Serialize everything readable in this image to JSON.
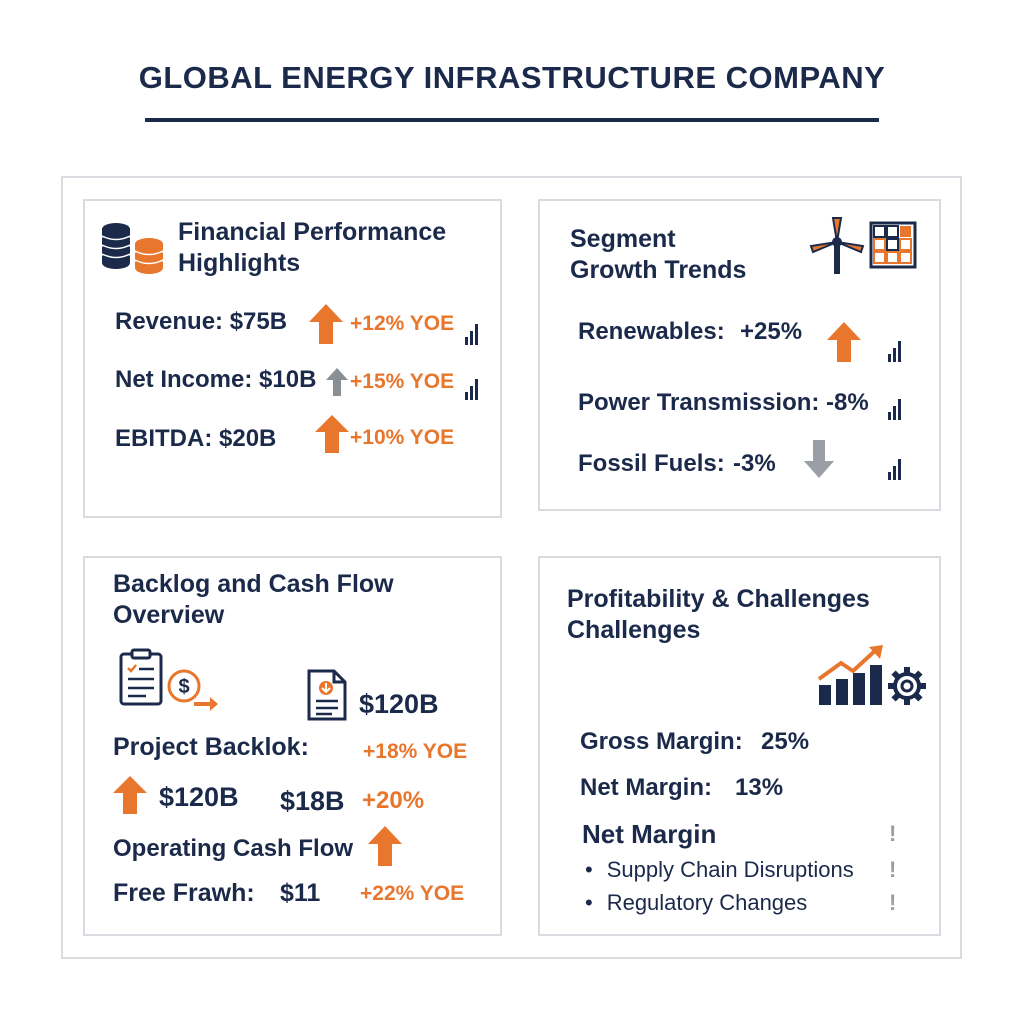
{
  "header": {
    "title": "GLOBAL ENERGY INFRASTRUCTURE COMPANY"
  },
  "colors": {
    "navy": "#1b2a4a",
    "orange": "#e8762d",
    "gray": "#9a9ea5",
    "border": "#d9dbe0"
  },
  "financial": {
    "title_line1": "Financial Performance",
    "title_line2": "Highlights",
    "icon": "coin-stack-icon",
    "revenue_label": "Revenue: $75B",
    "revenue_change": "+12% YOE",
    "net_income_label": "Net Income: $10B",
    "net_income_change": "+15% YOE",
    "ebitda_label": "EBITDA: $20B",
    "ebitda_change": "+10% YOE"
  },
  "segment": {
    "title_line1": "Segment",
    "title_line2": "Growth Trends",
    "icons": [
      "wind-turbine-icon",
      "solar-panel-icon"
    ],
    "renewables_label": "Renewables:",
    "renewables_value": "+25%",
    "transmission_label": "Power Transmission:",
    "transmission_value": "-8%",
    "fossil_label": "Fossil Fuels:",
    "fossil_value": "-3%"
  },
  "backlog": {
    "title_line1": "Backlog and Cash Flow",
    "title_line2": "Overview",
    "icons": [
      "clipboard-icon",
      "dollar-transfer-icon",
      "document-icon"
    ],
    "doc_value": "$120B",
    "project_backlog_label": "Project Backlok:",
    "project_backlog_change": "+18% YOE",
    "value_a": "$120B",
    "value_b": "$18B",
    "value_b_change": "+20%",
    "ocf_label": "Operating Cash Flow",
    "fcf_label": "Free Frawh:",
    "fcf_value": "$11",
    "fcf_change": "+22% YOE"
  },
  "profitability": {
    "title_line1": "Profitability & Challenges",
    "title_line2": "Challenges",
    "icons": [
      "growth-chart-icon",
      "gear-icon"
    ],
    "gross_margin_label": "Gross Margin:",
    "gross_margin_value": "25%",
    "net_margin_label": "Net Margin:",
    "net_margin_value": "13%",
    "net_margin_heading": "Net Margin",
    "challenges": [
      "Supply Chain Disruptions",
      "Regulatory Changes"
    ],
    "alert_mark": "!"
  }
}
